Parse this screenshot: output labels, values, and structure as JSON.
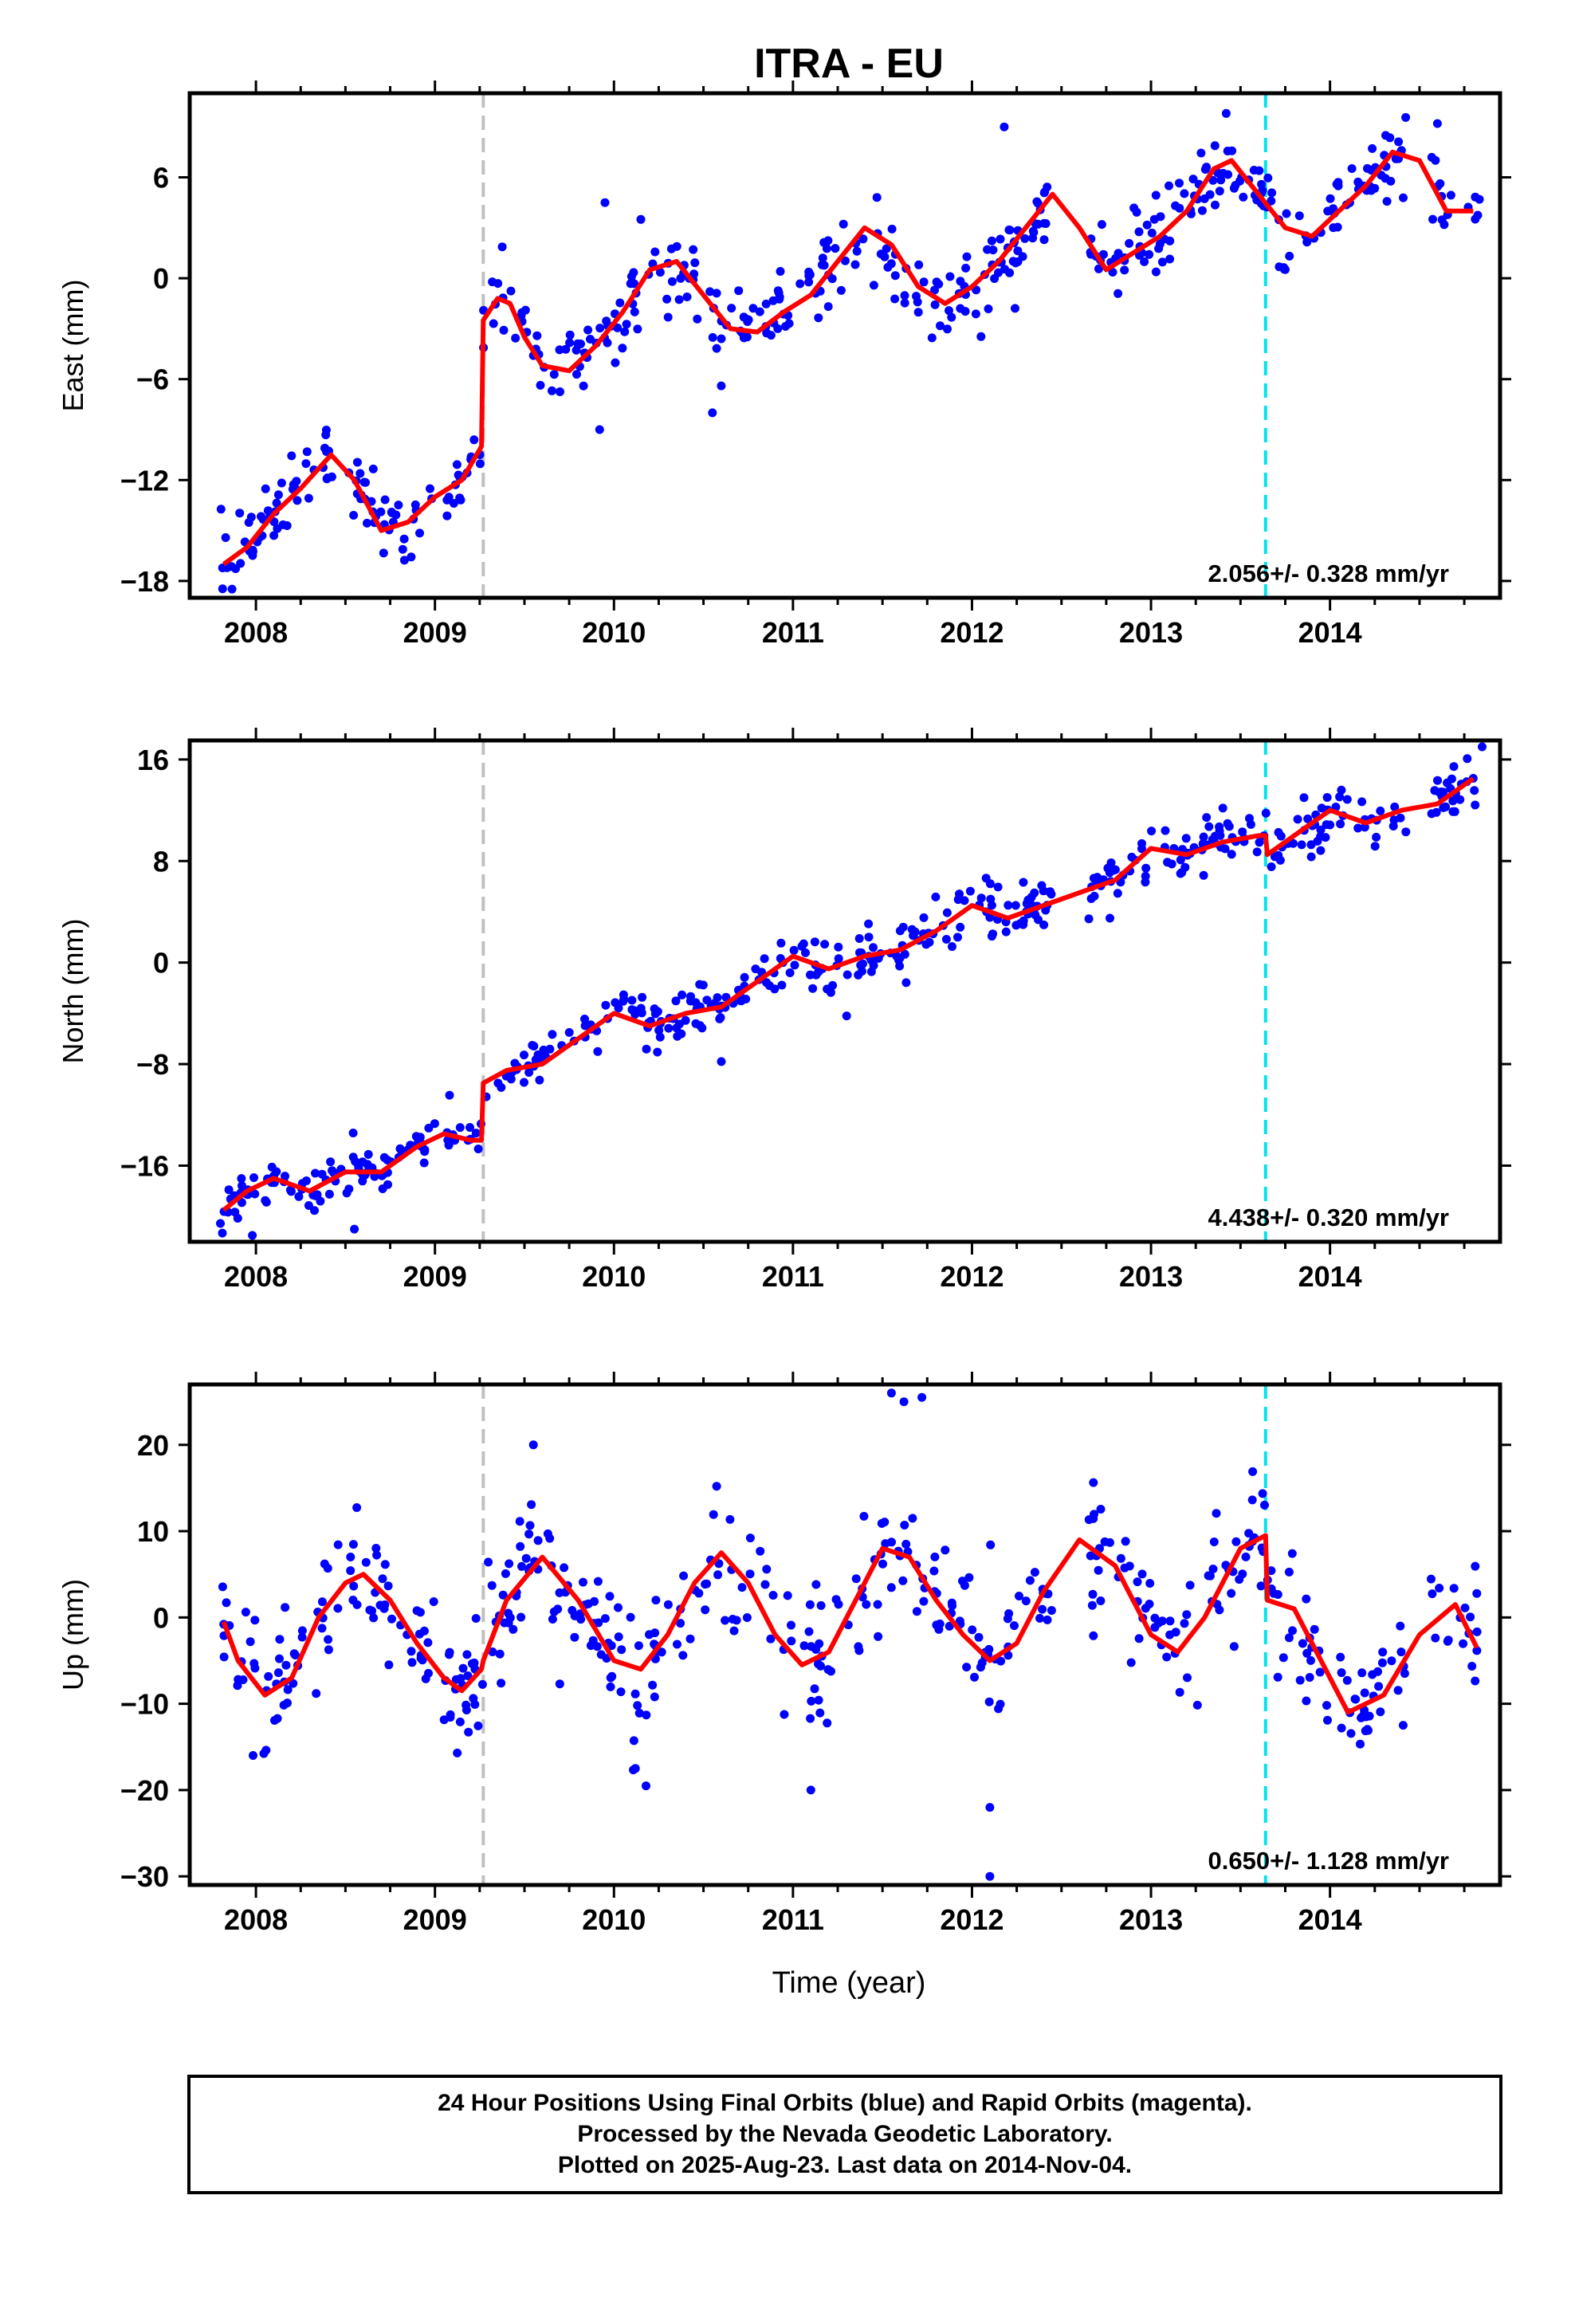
{
  "chart_data": {
    "type": "scatter",
    "title": "ITRA - EU",
    "xlabel": "Time (year)",
    "xlim": [
      2007.63,
      2014.95
    ],
    "xticks": [
      "2008",
      "2009",
      "2010",
      "2011",
      "2012",
      "2013",
      "2014"
    ],
    "xtick_values": [
      2008,
      2009,
      2010,
      2011,
      2012,
      2013,
      2014
    ],
    "equipment_change_epochs": [
      2009.27
    ],
    "marker_epoch": 2013.64,
    "colors": {
      "points": "#0000ff",
      "fit": "#ff0000",
      "equipment_line": "#c0c0c0",
      "marker_line": "#00e5ee"
    },
    "panels": [
      {
        "ylabel": "East (mm)",
        "ylim": [
          -19,
          11
        ],
        "yticks": [
          "6",
          "0",
          "−6",
          "−12",
          "−18"
        ],
        "ytick_values": [
          6,
          0,
          -6,
          -12,
          -18
        ],
        "rate_label": "2.056+/- 0.328 mm/yr",
        "fit": {
          "x": [
            2007.82,
            2007.95,
            2008.1,
            2008.25,
            2008.42,
            2008.55,
            2008.7,
            2008.85,
            2009.0,
            2009.15,
            2009.26,
            2009.27,
            2009.35,
            2009.42,
            2009.5,
            2009.6,
            2009.75,
            2009.9,
            2010.05,
            2010.2,
            2010.35,
            2010.5,
            2010.65,
            2010.8,
            2010.95,
            2011.1,
            2011.25,
            2011.4,
            2011.55,
            2011.7,
            2011.85,
            2012.0,
            2012.15,
            2012.3,
            2012.45,
            2012.6,
            2012.75,
            2012.9,
            2013.05,
            2013.2,
            2013.35,
            2013.45,
            2013.6,
            2013.75,
            2013.9,
            2014.05,
            2014.2,
            2014.35,
            2014.5,
            2014.65,
            2014.8
          ],
          "y": [
            -17,
            -16,
            -14,
            -12.5,
            -10.5,
            -12,
            -15,
            -14.5,
            -13,
            -12,
            -10,
            -2.5,
            -1.2,
            -1.5,
            -3.5,
            -5.2,
            -5.5,
            -4,
            -2,
            0.5,
            1,
            -1,
            -3,
            -3.2,
            -2,
            -1,
            1,
            3,
            2,
            -0.5,
            -1.5,
            -0.5,
            1,
            3,
            5,
            3,
            0.5,
            1.5,
            2.5,
            4,
            6.5,
            7,
            5,
            3,
            2.5,
            4,
            5.5,
            7.5,
            7,
            4,
            4
          ]
        },
        "points": {
          "n": 520,
          "noise": 1.2,
          "outliers": [
            [
              2009.95,
              4.5
            ],
            [
              2010.55,
              -8
            ],
            [
              2009.92,
              -9
            ],
            [
              2013.42,
              9.8
            ],
            [
              2012.18,
              9
            ],
            [
              2014.6,
              9.2
            ],
            [
              2013.1,
              5.5
            ],
            [
              2010.15,
              3.5
            ]
          ]
        }
      },
      {
        "ylabel": "North (mm)",
        "ylim": [
          -22,
          17.5
        ],
        "yticks": [
          "16",
          "8",
          "0",
          "−8",
          "−16"
        ],
        "ytick_values": [
          16,
          8,
          0,
          -8,
          -16
        ],
        "rate_label": "4.438+/- 0.320 mm/yr",
        "fit": {
          "x": [
            2007.82,
            2007.95,
            2008.1,
            2008.3,
            2008.5,
            2008.7,
            2008.9,
            2009.05,
            2009.2,
            2009.26,
            2009.27,
            2009.4,
            2009.6,
            2009.8,
            2010.0,
            2010.2,
            2010.4,
            2010.6,
            2010.8,
            2011.0,
            2011.2,
            2011.4,
            2011.6,
            2011.8,
            2012.0,
            2012.2,
            2012.4,
            2012.6,
            2012.8,
            2013.0,
            2013.2,
            2013.4,
            2013.6,
            2013.64,
            2013.65,
            2013.8,
            2014.0,
            2014.2,
            2014.4,
            2014.6,
            2014.8
          ],
          "y": [
            -19.5,
            -18,
            -17,
            -18,
            -16.5,
            -16.5,
            -14.5,
            -13.5,
            -14,
            -14,
            -9.5,
            -8.5,
            -8,
            -6,
            -4,
            -5,
            -4,
            -3.5,
            -1.5,
            0.5,
            -0.5,
            0.5,
            1,
            2.5,
            4.5,
            3.5,
            4.5,
            5.5,
            6.5,
            9,
            8.5,
            9.5,
            10,
            10,
            8.5,
            10,
            12,
            11,
            12,
            12.5,
            14.5
          ]
        },
        "points": {
          "n": 520,
          "noise": 1.0,
          "outliers": [
            [
              2007.98,
              -21.5
            ],
            [
              2008.55,
              -21
            ],
            [
              2010.6,
              -7.8
            ],
            [
              2011.3,
              -4.2
            ],
            [
              2014.85,
              17
            ]
          ]
        }
      },
      {
        "ylabel": "Up (mm)",
        "ylim": [
          -31,
          27
        ],
        "yticks": [
          "20",
          "10",
          "0",
          "−10",
          "−20",
          "−30"
        ],
        "ytick_values": [
          20,
          10,
          0,
          -10,
          -20,
          -30
        ],
        "rate_label": "0.650+/- 1.128 mm/yr",
        "fit": {
          "x": [
            2007.82,
            2007.9,
            2008.05,
            2008.2,
            2008.35,
            2008.5,
            2008.6,
            2008.75,
            2008.9,
            2009.05,
            2009.15,
            2009.26,
            2009.27,
            2009.4,
            2009.6,
            2009.8,
            2010.0,
            2010.15,
            2010.3,
            2010.45,
            2010.6,
            2010.75,
            2010.9,
            2011.05,
            2011.2,
            2011.35,
            2011.5,
            2011.65,
            2011.8,
            2011.95,
            2012.1,
            2012.25,
            2012.4,
            2012.6,
            2012.8,
            2013.0,
            2013.15,
            2013.3,
            2013.5,
            2013.64,
            2013.65,
            2013.8,
            2013.95,
            2014.1,
            2014.3,
            2014.5,
            2014.7,
            2014.82
          ],
          "y": [
            -0.5,
            -5,
            -9,
            -7,
            0,
            4,
            5,
            2,
            -3,
            -7,
            -8.5,
            -6,
            -5,
            2,
            7,
            2,
            -5,
            -6,
            -2,
            4,
            7.5,
            4,
            -2,
            -5.5,
            -4,
            2,
            8,
            7,
            2,
            -2,
            -5,
            -3,
            3,
            9,
            6,
            -2,
            -4,
            0,
            8,
            9.5,
            2,
            1,
            -5,
            -11,
            -9,
            -2,
            1.5,
            -3.5
          ]
        },
        "points": {
          "n": 520,
          "noise": 3.8,
          "outliers": [
            [
              2011.55,
              26
            ],
            [
              2011.62,
              25
            ],
            [
              2011.72,
              25.5
            ],
            [
              2012.1,
              -22
            ],
            [
              2012.1,
              -30
            ],
            [
              2011.1,
              -20
            ],
            [
              2009.55,
              20
            ],
            [
              2010.12,
              -17.5
            ]
          ]
        }
      }
    ]
  },
  "footer": {
    "line1": "24 Hour Positions Using Final Orbits (blue) and Rapid Orbits (magenta).",
    "line2": "Processed by the Nevada Geodetic Laboratory.",
    "line3": "Plotted on 2025-Aug-23. Last data on 2014-Nov-04."
  }
}
